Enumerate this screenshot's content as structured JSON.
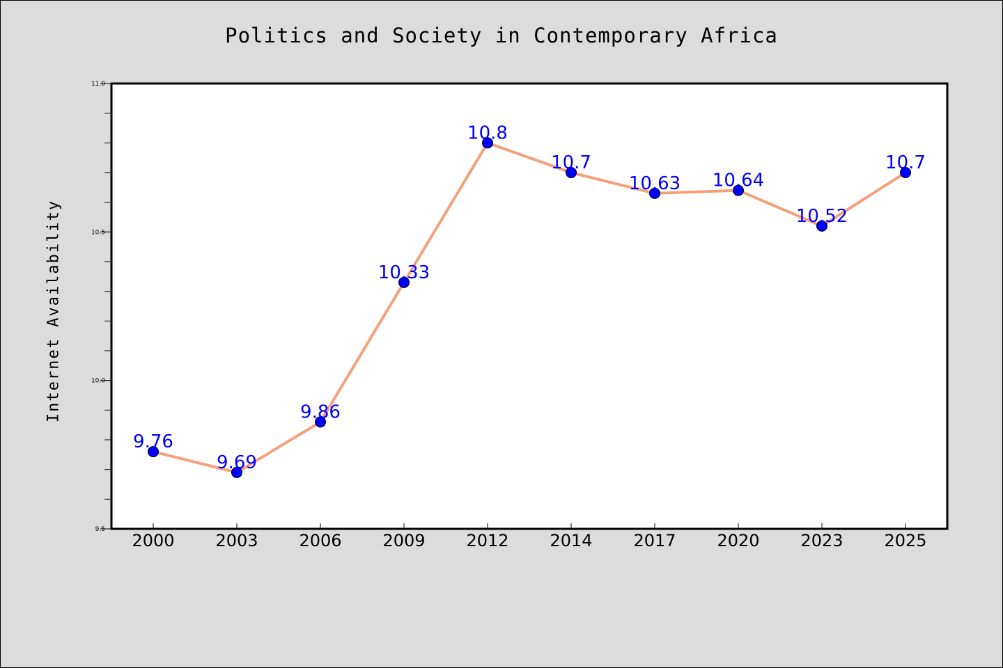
{
  "chart_data": {
    "type": "line",
    "title": "Politics and Society in Contemporary Africa",
    "xlabel": "",
    "ylabel": "Internet Availability",
    "categories": [
      "2000",
      "2003",
      "2006",
      "2009",
      "2012",
      "2014",
      "2017",
      "2020",
      "2023",
      "2025"
    ],
    "series": [
      {
        "values": [
          9.76,
          9.69,
          9.86,
          10.33,
          10.8,
          10.7,
          10.63,
          10.64,
          10.52,
          10.7
        ],
        "data_labels": [
          "9.76",
          "9.69",
          "9.86",
          "10.33",
          "10.8",
          "10.7",
          "10.63",
          "10.64",
          "10.52",
          "10.7"
        ]
      }
    ],
    "ylim": [
      9.5,
      11.0
    ],
    "yticks": [
      "9.5",
      "10.0",
      "10.5",
      "11.0"
    ],
    "grid": false,
    "legend": "none",
    "colors": {
      "line": "#f4a07a",
      "marker": "#0000ff",
      "data_label": "#0000ff",
      "plot_background": "#ffffff",
      "figure_background": "#dcdcdc"
    }
  }
}
